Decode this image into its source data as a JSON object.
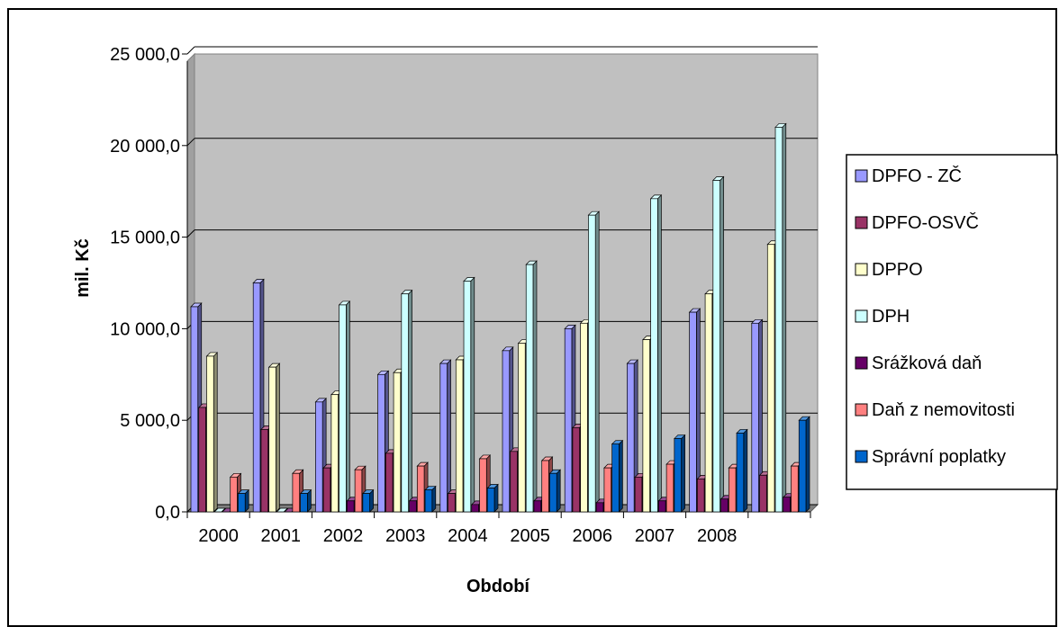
{
  "chart_data": {
    "type": "bar",
    "xlabel": "Období",
    "ylabel": "mil. Kč",
    "ylim": [
      0,
      25000
    ],
    "yticks": [
      "0,0",
      "5 000,0",
      "10 000,0",
      "15 000,0",
      "20 000,0",
      "25 000,0"
    ],
    "categories": [
      "2000",
      "2001",
      "2002",
      "2003",
      "2004",
      "2005",
      "2006",
      "2007",
      "2008",
      ""
    ],
    "grid": true,
    "legend_position": "right",
    "series": [
      {
        "name": "DPFO - ZČ",
        "color": "#9999FF",
        "values": [
          11200,
          12500,
          6000,
          7500,
          8100,
          8800,
          10000,
          8100,
          10900,
          10300
        ]
      },
      {
        "name": "DPFO-OSVČ",
        "color": "#993366",
        "values": [
          5700,
          4500,
          2400,
          3200,
          1000,
          3300,
          4600,
          1900,
          1800,
          2000
        ]
      },
      {
        "name": "DPPO",
        "color": "#FFFFCC",
        "values": [
          8500,
          7900,
          6400,
          7600,
          8300,
          9200,
          10300,
          9400,
          11900,
          14600
        ]
      },
      {
        "name": "DPH",
        "color": "#CCFFFF",
        "values": [
          0,
          0,
          11300,
          11900,
          12600,
          13500,
          16200,
          17100,
          18100,
          21000
        ]
      },
      {
        "name": "Srážková daň",
        "color": "#660066",
        "values": [
          0,
          0,
          600,
          600,
          400,
          600,
          500,
          600,
          700,
          800
        ]
      },
      {
        "name": "Daň z nemovitosti",
        "color": "#FF8080",
        "values": [
          1900,
          2100,
          2300,
          2500,
          2900,
          2800,
          2400,
          2600,
          2400,
          2500
        ]
      },
      {
        "name": "Správní poplatky",
        "color": "#0066CC",
        "values": [
          1000,
          1000,
          1000,
          1200,
          1300,
          2100,
          3700,
          4000,
          4300,
          5000
        ]
      }
    ]
  }
}
